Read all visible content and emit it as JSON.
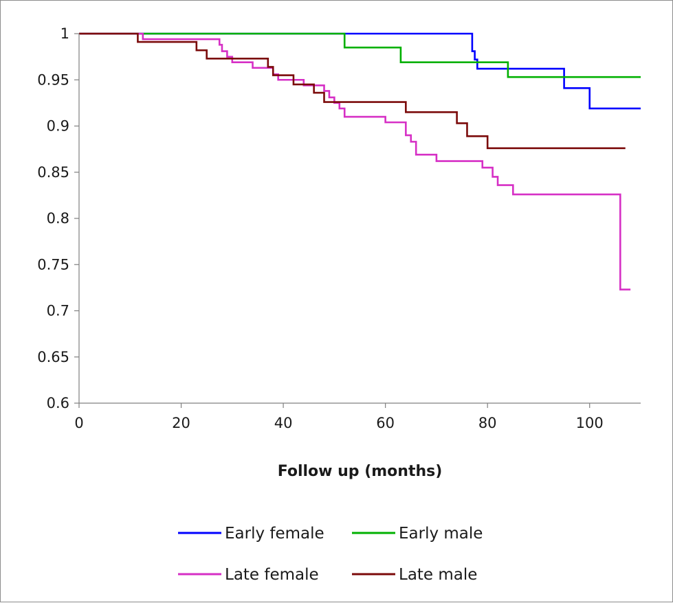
{
  "chart_data": {
    "type": "line",
    "step": true,
    "xlabel": "Follow up (months)",
    "ylabel": "",
    "title": "",
    "xlim": [
      0,
      110
    ],
    "ylim": [
      0.6,
      1.0
    ],
    "xticks": [
      0,
      20,
      40,
      60,
      80,
      100
    ],
    "yticks": [
      0.6,
      0.65,
      0.7,
      0.75,
      0.8,
      0.85,
      0.9,
      0.95,
      1.0
    ],
    "ytick_labels": [
      "0.6",
      "0.65",
      "0.7",
      "0.75",
      "0.8",
      "0.85",
      "0.9",
      "0.95",
      "1"
    ],
    "xtick_labels": [
      "0",
      "20",
      "40",
      "60",
      "80",
      "100"
    ],
    "grid": false,
    "legend_position": "bottom",
    "series": [
      {
        "name": "Early female",
        "color": "#0000ff",
        "x": [
          0,
          77,
          77.5,
          78,
          95,
          100,
          110
        ],
        "y": [
          1.0,
          0.981,
          0.972,
          0.962,
          0.941,
          0.919,
          0.919
        ]
      },
      {
        "name": "Early male",
        "color": "#00b000",
        "x": [
          0,
          52,
          63,
          84,
          110
        ],
        "y": [
          1.0,
          0.985,
          0.969,
          0.953,
          0.953
        ]
      },
      {
        "name": "Late female",
        "color": "#d62fc5",
        "x": [
          0,
          12.5,
          27.5,
          28,
          29,
          30,
          34,
          38,
          39,
          40,
          44,
          48,
          49,
          50,
          51,
          52,
          60,
          64,
          65,
          66,
          70,
          79,
          81,
          82,
          85,
          106,
          108
        ],
        "y": [
          1.0,
          0.994,
          0.988,
          0.981,
          0.975,
          0.969,
          0.963,
          0.956,
          0.95,
          0.95,
          0.944,
          0.938,
          0.931,
          0.925,
          0.919,
          0.91,
          0.904,
          0.89,
          0.883,
          0.869,
          0.862,
          0.855,
          0.845,
          0.836,
          0.826,
          0.723,
          0.723
        ]
      },
      {
        "name": "Late male",
        "color": "#7b0a0a",
        "x": [
          0,
          11.5,
          23,
          25,
          31,
          37,
          38,
          42,
          46,
          48,
          51,
          64,
          74,
          76,
          80,
          107
        ],
        "y": [
          1.0,
          0.991,
          0.982,
          0.973,
          0.973,
          0.964,
          0.955,
          0.945,
          0.936,
          0.926,
          0.926,
          0.915,
          0.903,
          0.889,
          0.876,
          0.876
        ]
      }
    ]
  }
}
